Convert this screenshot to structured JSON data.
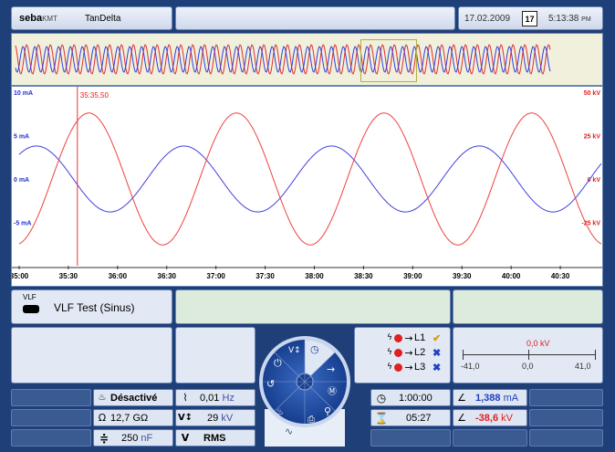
{
  "header": {
    "brand": "seba",
    "brand_suffix": "KMT",
    "mode": "TanDelta",
    "date": "17.02.2009",
    "calendar_day": "17",
    "time": "5:13:38",
    "time_suffix": "PM"
  },
  "chart_data": {
    "type": "line",
    "cursor_label": "35:35,50",
    "x_ticks": [
      "35:00",
      "35:30",
      "36:00",
      "36:30",
      "37:00",
      "37:30",
      "38:00",
      "38:30",
      "39:00",
      "39:30",
      "40:00",
      "40:30"
    ],
    "y_left_ticks": [
      "10 mA",
      "5 mA",
      "0 mA",
      "-5 mA"
    ],
    "y_right_ticks": [
      "50 kV",
      "25 kV",
      "0 kV",
      "-25 kV"
    ],
    "ylim_left": [
      -10,
      10
    ],
    "ylim_right": [
      -50,
      50
    ],
    "series": [
      {
        "name": "current",
        "color": "#4040e0",
        "axis": "left",
        "amplitude": 3.8,
        "period_s": 90,
        "phase_s": 12
      },
      {
        "name": "voltage",
        "color": "#f04040",
        "axis": "right",
        "amplitude": 38,
        "period_s": 90,
        "phase_s": -20
      }
    ]
  },
  "test": {
    "icon_label": "VLF",
    "name": "VLF Test (Sinus)"
  },
  "phases": [
    {
      "label": "L1",
      "status": "✔",
      "status_color": "#d89a00"
    },
    {
      "label": "L2",
      "status": "✖",
      "status_color": "#2040c0"
    },
    {
      "label": "L3",
      "status": "✖",
      "status_color": "#2040c0"
    }
  ],
  "gauge": {
    "value": "0,0 kV",
    "left": "-41,0",
    "mid": "0,0",
    "right": "41,0"
  },
  "params": {
    "burn_label": "Désactivé",
    "freq_value": "0,01",
    "freq_unit": "Hz",
    "resistance_value": "12,7 GΩ",
    "voltage_value": "29",
    "voltage_unit": "kV",
    "capacitance_value": "250",
    "capacitance_unit": "nF",
    "mode_label": "RMS",
    "duration": "1:00:00",
    "elapsed": "05:27",
    "current_value": "1,388",
    "current_unit": "mA",
    "voltage_meas_value": "-38,6",
    "voltage_meas_unit": "kV"
  }
}
